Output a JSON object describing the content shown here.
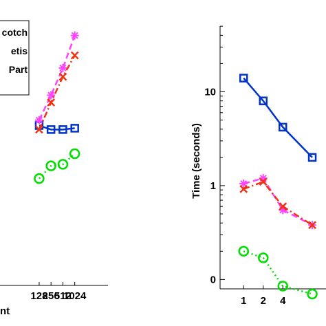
{
  "chart_data": [
    {
      "type": "line",
      "title": "",
      "xlabel": "nt",
      "ylabel": "",
      "x_tick_labels": [
        "128",
        "256",
        "512",
        "1024"
      ],
      "xlim_index": [
        -3.3,
        5.8
      ],
      "ylim": [
        0.55,
        1.45
      ],
      "y_scale": "log",
      "grid": false,
      "legend": {
        "placement": "top-left",
        "entries": [
          "cotch",
          "etis",
          "Part"
        ]
      },
      "series": [
        {
          "name": "cotch",
          "color": "#0033cc",
          "line_style": "solid",
          "marker": "square",
          "x_index": [
            0,
            1,
            2,
            3
          ],
          "values": [
            1.0,
            0.985,
            0.985,
            0.99
          ]
        },
        {
          "name": "etis",
          "color": "#ff44ff",
          "line_style": "dashed",
          "marker": "star",
          "x_index": [
            0,
            1,
            2,
            3
          ],
          "values": [
            1.02,
            1.12,
            1.24,
            1.4
          ]
        },
        {
          "name": "Part",
          "color": "#ee3311",
          "line_style": "dashdot",
          "marker": "x",
          "x_index": [
            0,
            1,
            2,
            3
          ],
          "values": [
            0.985,
            1.09,
            1.2,
            1.3
          ]
        },
        {
          "name": "",
          "color": "#00dd00",
          "line_style": "dotted",
          "marker": "circle",
          "x_index": [
            0,
            1,
            2,
            3
          ],
          "values": [
            0.82,
            0.86,
            0.865,
            0.9
          ]
        }
      ]
    },
    {
      "type": "line",
      "title": "",
      "xlabel": "",
      "ylabel": "Time (seconds)",
      "x_tick_labels": [
        "1",
        "2",
        "4"
      ],
      "y_tick_labels": [
        "0",
        "1",
        "10"
      ],
      "xlim_index": [
        -1.2,
        4.2
      ],
      "ylim_log10": [
        -1.1,
        1.7
      ],
      "y_scale": "log",
      "grid": false,
      "series": [
        {
          "name": "",
          "color": "#0033cc",
          "line_style": "solid",
          "marker": "square",
          "x_index": [
            0,
            1,
            2,
            3.5
          ],
          "values": [
            14.0,
            8.0,
            4.2,
            2.0
          ]
        },
        {
          "name": "",
          "color": "#ff44ff",
          "line_style": "dashed",
          "marker": "star",
          "x_index": [
            0,
            1,
            2,
            3.5
          ],
          "values": [
            1.05,
            1.2,
            0.55,
            0.38
          ]
        },
        {
          "name": "",
          "color": "#ee3311",
          "line_style": "dashdot",
          "marker": "x",
          "x_index": [
            0,
            1,
            2,
            3.5
          ],
          "values": [
            0.92,
            1.1,
            0.6,
            0.38
          ]
        },
        {
          "name": "",
          "color": "#00dd00",
          "line_style": "dotted",
          "marker": "circle",
          "x_index": [
            0,
            1,
            2,
            3.5
          ],
          "values": [
            0.2,
            0.17,
            0.085,
            0.07
          ]
        }
      ]
    }
  ]
}
